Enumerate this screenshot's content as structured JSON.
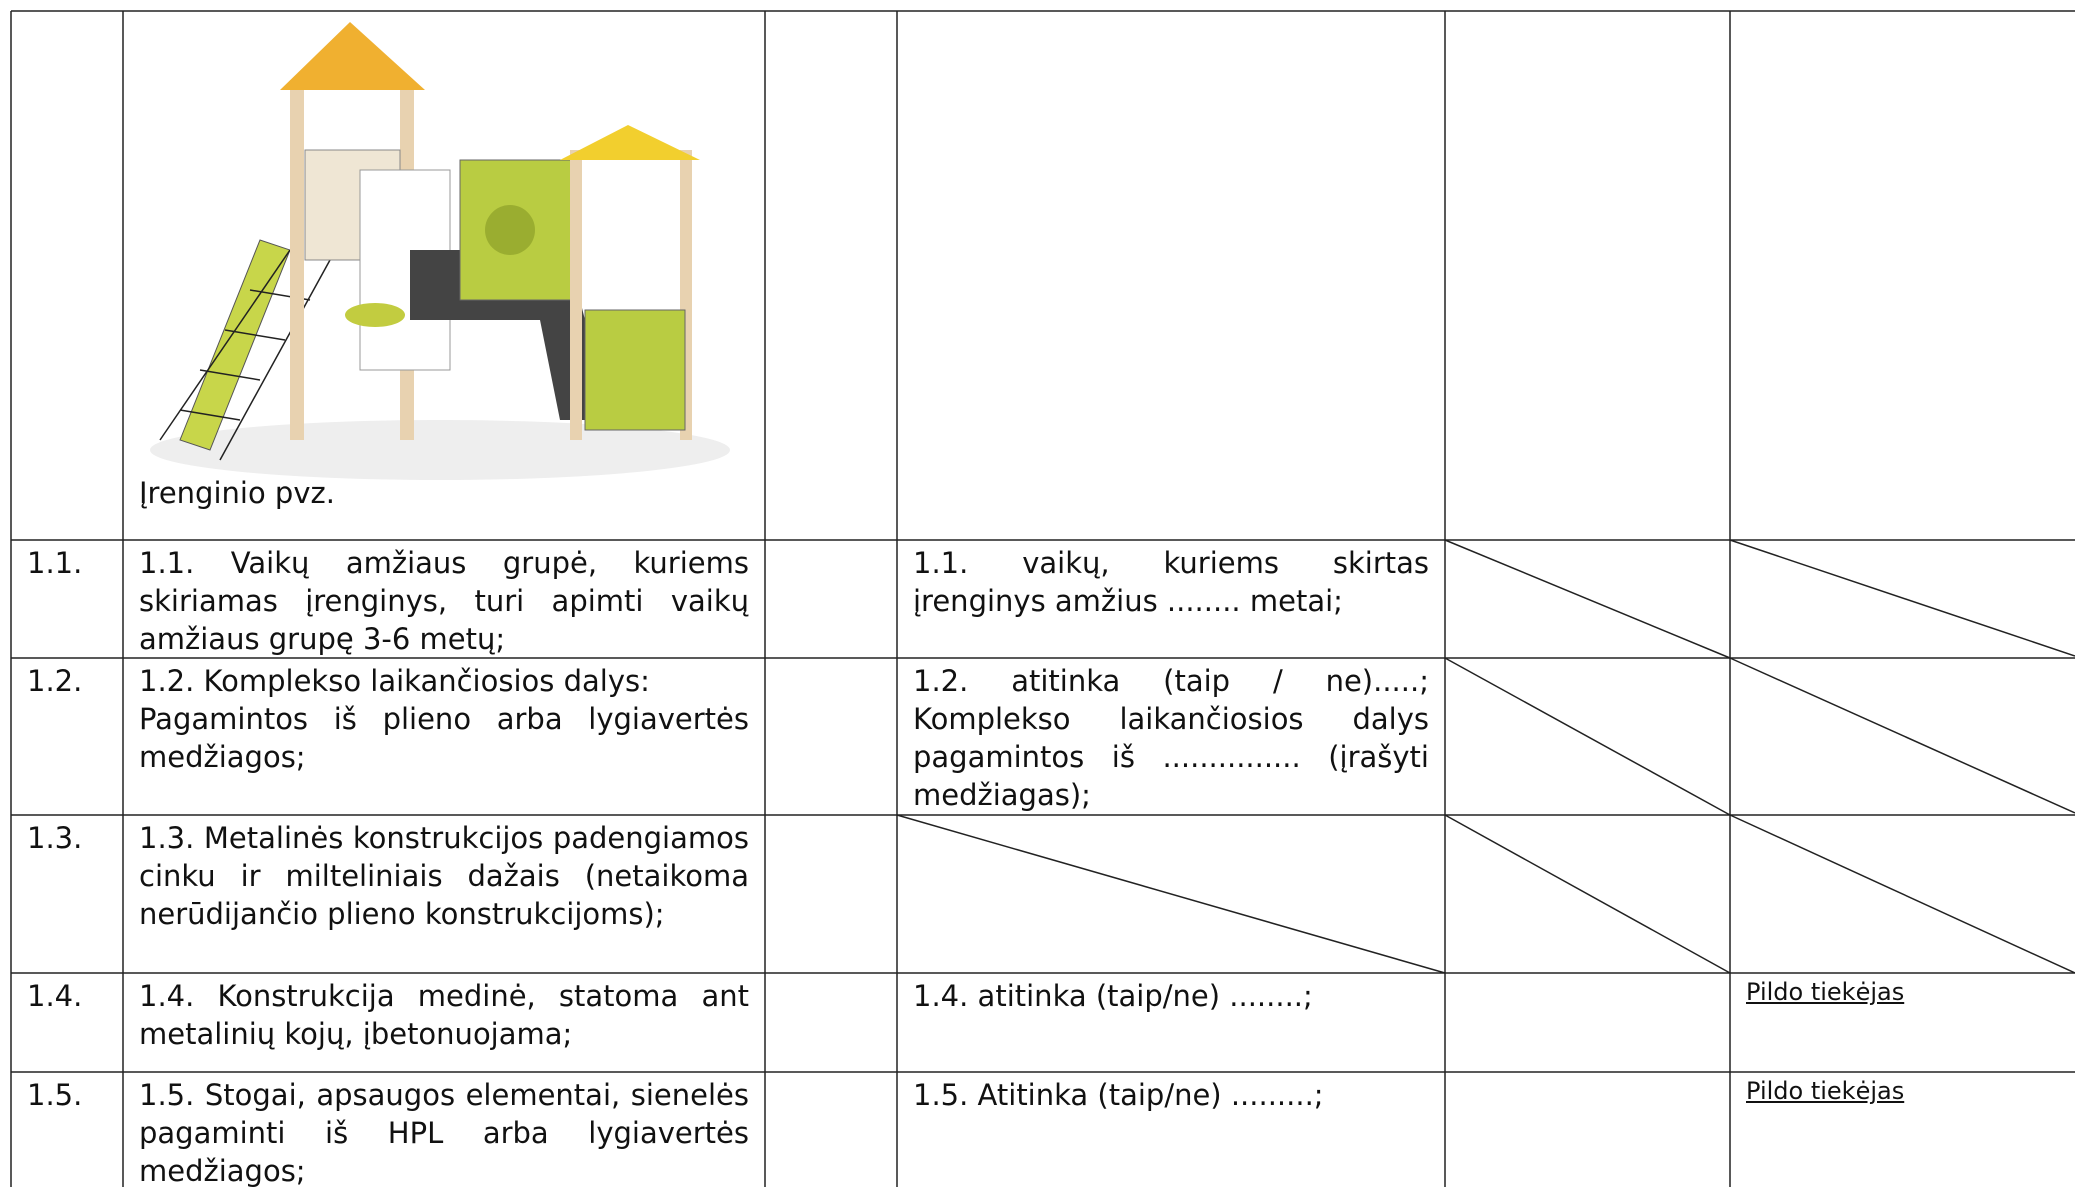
{
  "table": {
    "image_caption": "Įrenginio pvz.",
    "rows": [
      {
        "number": "1.1.",
        "requirement": "1.1. Vaikų amžiaus grupė, kuriems skiriamas įrenginys, turi apimti vaikų amžiaus grupę 3-6 metų;",
        "offer": "1.1. vaikų, kuriems skirtas įrenginys amžius ........ metai;"
      },
      {
        "number": "1.2.",
        "requirement": "1.2. Komplekso laikančiosios dalys:\nPagamintos iš plieno arba lygiavertės medžiagos;",
        "offer": "1.2. atitinka (taip / ne).....; Komplekso laikančiosios dalys pagamintos iš ............... (įrašyti medžiagas);"
      },
      {
        "number": "1.3.",
        "requirement": "1.3. Metalinės konstrukcijos padengiamos cinku ir milteliniais dažais (netaikoma nerūdijančio plieno konstrukcijoms);"
      },
      {
        "number": "1.4.",
        "requirement": "1.4. Konstrukcija medinė, statoma ant metalinių kojų, įbetonuojama;",
        "offer": "1.4. atitinka (taip/ne) ........;",
        "note": "Pildo tiekėjas"
      },
      {
        "number": "1.5.",
        "requirement": "1.5. Stogai, apsaugos elementai, sienelės pagaminti iš HPL arba lygiavertės medžiagos;",
        "offer": "1.5. Atitinka (taip/ne) .........;",
        "note": "Pildo tiekėjas"
      }
    ]
  }
}
